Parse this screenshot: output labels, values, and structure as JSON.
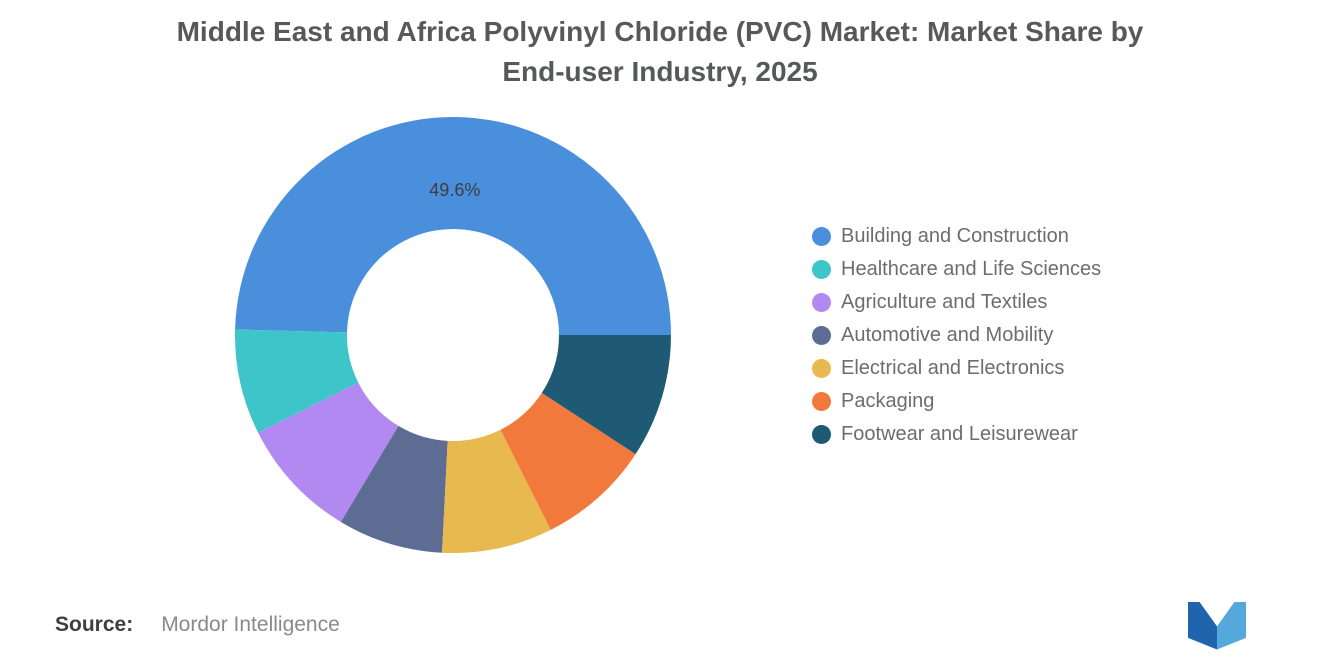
{
  "title": {
    "line1": "Middle East and Africa Polyvinyl Chloride (PVC) Market: Market Share by",
    "line2": "End-user Industry, 2025"
  },
  "chart_data": {
    "type": "pie",
    "donut": true,
    "title": "Middle East and Africa Polyvinyl Chloride (PVC) Market: Market Share by End-user Industry, 2025",
    "categories": [
      "Building and Construction",
      "Healthcare and Life Sciences",
      "Agriculture and Textiles",
      "Automotive and Mobility",
      "Electrical and Electronics",
      "Packaging",
      "Footwear and Leisurewear"
    ],
    "values": [
      49.6,
      7.8,
      9.0,
      7.8,
      8.2,
      8.4,
      9.2
    ],
    "colors": [
      "#4A8FDC",
      "#3EC5C9",
      "#B289F0",
      "#5D6C93",
      "#E7B94F",
      "#F0793B",
      "#1F5A75"
    ],
    "data_labels": [
      "49.6%",
      "",
      "",
      "",
      "",
      "",
      ""
    ],
    "start_angle_deg": 0,
    "direction": "counterclockwise",
    "legend_position": "right"
  },
  "legend": {
    "items": [
      {
        "label": "Building and Construction",
        "color": "#4A8FDC"
      },
      {
        "label": "Healthcare and Life Sciences",
        "color": "#3EC5C9"
      },
      {
        "label": "Agriculture and Textiles",
        "color": "#B289F0"
      },
      {
        "label": "Automotive and Mobility",
        "color": "#5D6C93"
      },
      {
        "label": "Electrical and Electronics",
        "color": "#E7B94F"
      },
      {
        "label": "Packaging",
        "color": "#F0793B"
      },
      {
        "label": "Footwear and Leisurewear",
        "color": "#1F5A75"
      }
    ]
  },
  "source": {
    "label": "Source:",
    "value": "Mordor Intelligence"
  },
  "logo": {
    "name": "mordor-intelligence-logo",
    "dark": "#1F64AD",
    "light": "#54A8DC"
  }
}
